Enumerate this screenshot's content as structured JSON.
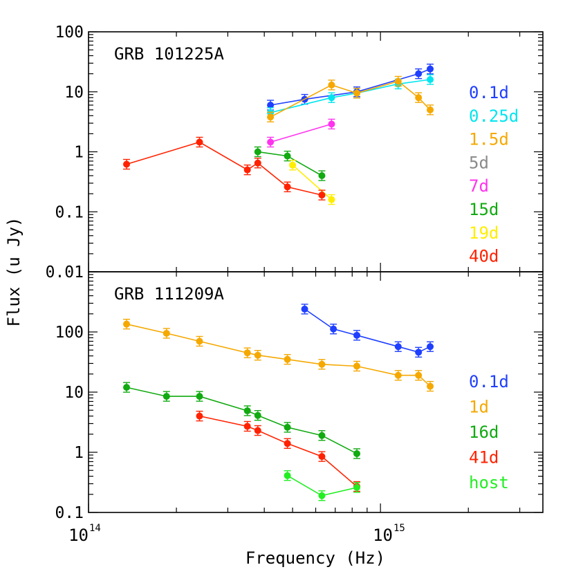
{
  "figure": {
    "xlabel": "Frequency (Hz)",
    "ylabel": "Flux (u Jy)",
    "x_ticks": [
      {
        "base": "10",
        "exp": "14"
      },
      {
        "base": "10",
        "exp": "15"
      }
    ]
  },
  "chart_data": [
    {
      "type": "line",
      "title": "GRB 101225A",
      "x_scale": "log",
      "y_scale": "log",
      "xlim": [
        100000000000000.0,
        3600000000000000.0
      ],
      "ylim": [
        0.01,
        100
      ],
      "y_tick_labels": [
        "100",
        "10",
        "1",
        "0.1",
        "0.01"
      ],
      "legend_position": "right",
      "series": [
        {
          "name": "0.1d",
          "color": "#1f3fff",
          "x": [
            420000000000000.0,
            550000000000000.0,
            830000000000000.0,
            1350000000000000.0,
            1480000000000000.0
          ],
          "y": [
            6.0,
            7.5,
            10.0,
            20.0,
            24.0
          ]
        },
        {
          "name": "0.25d",
          "color": "#00e5ee",
          "x": [
            420000000000000.0,
            680000000000000.0,
            830000000000000.0,
            1150000000000000.0,
            1480000000000000.0
          ],
          "y": [
            4.5,
            8.0,
            9.5,
            13.5,
            16.0
          ]
        },
        {
          "name": "1.5d",
          "color": "#f5a800",
          "x": [
            420000000000000.0,
            680000000000000.0,
            830000000000000.0,
            1150000000000000.0,
            1350000000000000.0,
            1480000000000000.0
          ],
          "y": [
            3.8,
            13.0,
            9.5,
            15.0,
            8.0,
            5.0
          ]
        },
        {
          "name": "5d",
          "color": "#8a8a8a",
          "x": [],
          "y": []
        },
        {
          "name": "7d",
          "color": "#ff33ee",
          "x": [
            420000000000000.0,
            680000000000000.0
          ],
          "y": [
            1.45,
            2.9
          ]
        },
        {
          "name": "15d",
          "color": "#11aa11",
          "x": [
            380000000000000.0,
            480000000000000.0,
            630000000000000.0
          ],
          "y": [
            1.0,
            0.85,
            0.4
          ]
        },
        {
          "name": "19d",
          "color": "#ffee00",
          "x": [
            500000000000000.0,
            680000000000000.0
          ],
          "y": [
            0.6,
            0.16
          ]
        },
        {
          "name": "40d",
          "color": "#ff2200",
          "x": [
            135000000000000.0,
            240000000000000.0,
            350000000000000.0,
            380000000000000.0,
            480000000000000.0,
            630000000000000.0
          ],
          "y": [
            0.62,
            1.45,
            0.5,
            0.65,
            0.26,
            0.19
          ]
        }
      ]
    },
    {
      "type": "line",
      "title": "GRB 111209A",
      "x_scale": "log",
      "y_scale": "log",
      "xlim": [
        100000000000000.0,
        3600000000000000.0
      ],
      "ylim": [
        0.1,
        1000
      ],
      "y_tick_labels": [
        "100",
        "10",
        "1",
        "0.1"
      ],
      "legend_position": "right",
      "series": [
        {
          "name": "0.1d",
          "color": "#1f3fff",
          "x": [
            550000000000000.0,
            690000000000000.0,
            830000000000000.0,
            1150000000000000.0,
            1350000000000000.0,
            1480000000000000.0
          ],
          "y": [
            240,
            112,
            88,
            57,
            46,
            57
          ]
        },
        {
          "name": "1d",
          "color": "#f5a800",
          "x": [
            135000000000000.0,
            185000000000000.0,
            240000000000000.0,
            350000000000000.0,
            380000000000000.0,
            480000000000000.0,
            630000000000000.0,
            830000000000000.0,
            1150000000000000.0,
            1350000000000000.0,
            1480000000000000.0
          ],
          "y": [
            135,
            95,
            70,
            45,
            41,
            35,
            29,
            27,
            19,
            19,
            12.5
          ]
        },
        {
          "name": "16d",
          "color": "#11aa11",
          "x": [
            135000000000000.0,
            185000000000000.0,
            240000000000000.0,
            350000000000000.0,
            380000000000000.0,
            480000000000000.0,
            630000000000000.0,
            830000000000000.0
          ],
          "y": [
            12,
            8.5,
            8.5,
            4.9,
            4.1,
            2.6,
            1.9,
            0.95
          ]
        },
        {
          "name": "41d",
          "color": "#ff2200",
          "x": [
            240000000000000.0,
            350000000000000.0,
            380000000000000.0,
            480000000000000.0,
            630000000000000.0,
            830000000000000.0
          ],
          "y": [
            4.0,
            2.7,
            2.3,
            1.4,
            0.85,
            0.27
          ]
        },
        {
          "name": "host",
          "color": "#22ee22",
          "x": [
            480000000000000.0,
            630000000000000.0,
            830000000000000.0
          ],
          "y": [
            0.41,
            0.19,
            0.26
          ]
        }
      ]
    }
  ]
}
